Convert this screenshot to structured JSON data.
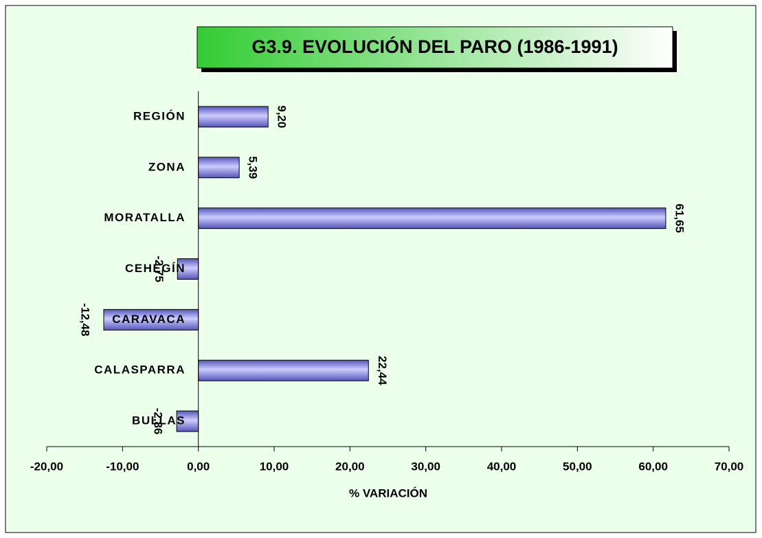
{
  "chart_data": {
    "type": "bar",
    "orientation": "horizontal",
    "title": "G3.9. EVOLUCIÓN DEL PARO (1986-1991)",
    "xlabel": "% VARIACIÓN",
    "categories": [
      "REGIÓN",
      "ZONA",
      "MORATALLA",
      "CEHEGÍN",
      "CARAVACA",
      "CALASPARRA",
      "BULLAS"
    ],
    "values": [
      9.2,
      5.39,
      61.65,
      -2.75,
      -12.48,
      22.44,
      -2.86
    ],
    "value_labels": [
      "9,20",
      "5,39",
      "61,65",
      "-2,75",
      "-12,48",
      "22,44",
      "-2,86"
    ],
    "color": "#9999ff",
    "xlim": [
      -20,
      70
    ],
    "xticks": [
      {
        "value": -20,
        "label": "-20,00"
      },
      {
        "value": -10,
        "label": "-10,00"
      },
      {
        "value": 0,
        "label": "0,00"
      },
      {
        "value": 10,
        "label": "10,00"
      },
      {
        "value": 20,
        "label": "20,00"
      },
      {
        "value": 30,
        "label": "30,00"
      },
      {
        "value": 40,
        "label": "40,00"
      },
      {
        "value": 50,
        "label": "50,00"
      },
      {
        "value": 60,
        "label": "60,00"
      },
      {
        "value": 70,
        "label": "70,00"
      }
    ],
    "grid": false
  }
}
